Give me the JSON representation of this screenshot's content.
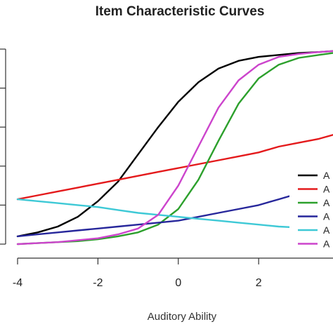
{
  "chart_data": {
    "type": "line",
    "title": "Item Characteristic Curves",
    "xlabel": "Auditory Ability",
    "ylabel": "",
    "xlim": [
      -4,
      3.85
    ],
    "ylim": [
      0,
      1
    ],
    "x_ticks": [
      "-4",
      "-2",
      "0",
      "2"
    ],
    "y_ticks": [
      0,
      0.2,
      0.4,
      0.6,
      0.8,
      1.0
    ],
    "grid": false,
    "legend_position": "right",
    "x": [
      -4,
      -3.5,
      -3,
      -2.5,
      -2,
      -1.5,
      -1,
      -0.5,
      0,
      0.5,
      1,
      1.5,
      2,
      2.5,
      3,
      3.5,
      3.85
    ],
    "series": [
      {
        "name": "A",
        "color": "#000000",
        "values": [
          0.04,
          0.06,
          0.09,
          0.14,
          0.22,
          0.32,
          0.46,
          0.6,
          0.73,
          0.83,
          0.9,
          0.94,
          0.96,
          0.97,
          0.98,
          0.985,
          0.99
        ]
      },
      {
        "name": "A",
        "color": "#e41a1c",
        "values": [
          0.23,
          0.25,
          0.27,
          0.29,
          0.31,
          0.33,
          0.35,
          0.37,
          0.39,
          0.41,
          0.43,
          0.45,
          0.47,
          0.5,
          0.52,
          0.54,
          0.56
        ]
      },
      {
        "name": "A",
        "color": "#2ca02c",
        "values": [
          0.0,
          0.005,
          0.01,
          0.015,
          0.025,
          0.04,
          0.06,
          0.1,
          0.18,
          0.33,
          0.53,
          0.72,
          0.85,
          0.92,
          0.955,
          0.97,
          0.98
        ]
      },
      {
        "name": "A",
        "color": "#27279b",
        "values": [
          0.04,
          0.05,
          0.06,
          0.07,
          0.08,
          0.09,
          0.1,
          0.11,
          0.12,
          0.14,
          0.16,
          0.18,
          0.2,
          0.23,
          0.26,
          0.3,
          0.33
        ]
      },
      {
        "name": "A",
        "color": "#3ec9d6",
        "values": [
          0.23,
          0.22,
          0.21,
          0.2,
          0.19,
          0.175,
          0.16,
          0.15,
          0.14,
          0.13,
          0.12,
          0.11,
          0.1,
          0.09,
          0.085,
          0.08,
          0.075
        ]
      },
      {
        "name": "A",
        "color": "#cc44cc",
        "values": [
          0.0,
          0.005,
          0.01,
          0.02,
          0.03,
          0.05,
          0.08,
          0.15,
          0.3,
          0.5,
          0.7,
          0.84,
          0.92,
          0.96,
          0.975,
          0.985,
          0.99
        ]
      }
    ]
  }
}
